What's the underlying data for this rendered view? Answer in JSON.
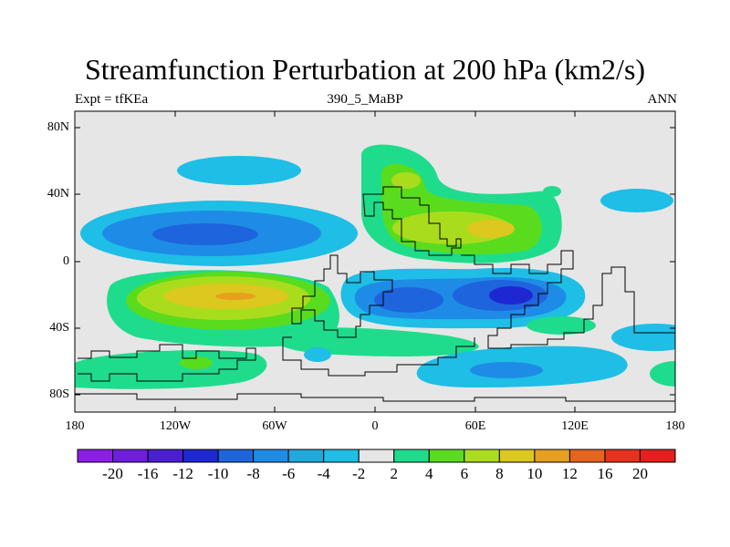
{
  "title": "Streamfunction Perturbation at 200 hPa (km2/s)",
  "subtitle_left": "Expt = tfKEa",
  "subtitle_center": "390_5_MaBP",
  "subtitle_right": "ANN",
  "lat_labels": [
    "80N",
    "40N",
    "0",
    "40S",
    "80S"
  ],
  "lon_labels": [
    "180",
    "120W",
    "60W",
    "0",
    "60E",
    "120E",
    "180"
  ],
  "colorbar": {
    "labels": [
      "-20",
      "-16",
      "-12",
      "-10",
      "-8",
      "-6",
      "-4",
      "-2",
      "2",
      "4",
      "6",
      "8",
      "10",
      "12",
      "16",
      "20"
    ],
    "colors": [
      "#8C1EE6",
      "#6E1EDC",
      "#4B1ED2",
      "#1E28D2",
      "#1E64DC",
      "#1E8CE6",
      "#1EAADC",
      "#1EBEE6",
      "#E6E6E6",
      "#1EDC8C",
      "#5ADC1E",
      "#AADC1E",
      "#DCC81E",
      "#E6A01E",
      "#E6641E",
      "#E6321E",
      "#E61E1E"
    ]
  },
  "colors": {
    "background": "#E6E6E6",
    "blue_light": "#1EBEE6",
    "blue_mid": "#1E8CE6",
    "blue_dark": "#1E28D2",
    "green": "#1EDC8C",
    "yellow_green": "#AADC1E",
    "yellow": "#DCC81E",
    "orange": "#E6A01E",
    "red": "#E6321E"
  }
}
